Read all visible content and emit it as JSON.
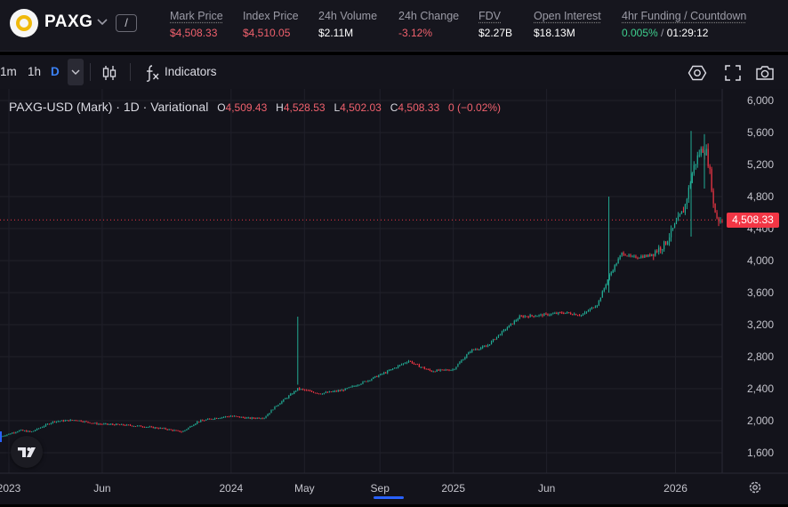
{
  "header": {
    "symbol": "PAXG",
    "shortcut_key": "/",
    "logo_icon": "paxg-gold-ring-icon",
    "stats": [
      {
        "id": "mark",
        "label": "Mark Price",
        "value": "$4,508.33",
        "value_color": "red"
      },
      {
        "id": "index",
        "label": "Index Price",
        "value": "$4,510.05",
        "value_color": "red"
      },
      {
        "id": "volume",
        "label": "24h Volume",
        "value": "$2.11M",
        "value_color": "white"
      },
      {
        "id": "change",
        "label": "24h Change",
        "value": "-3.12%",
        "value_color": "red"
      },
      {
        "id": "fdv",
        "label": "FDV",
        "value": "$2.27B",
        "value_color": "white"
      },
      {
        "id": "oi",
        "label": "Open Interest",
        "value": "$18.13M",
        "value_color": "white"
      }
    ],
    "funding": {
      "label": "4hr Funding / Countdown",
      "rate": "0.005%",
      "separator": "/",
      "countdown": "01:29:12"
    }
  },
  "toolbar": {
    "timeframes": [
      "1m",
      "1h",
      "D"
    ],
    "active_timeframe": "D",
    "indicators_label": "Indicators",
    "icons": [
      "chevron-down-icon",
      "candles-icon",
      "fx-icon",
      "settings-icon",
      "fullscreen-icon",
      "camera-icon"
    ]
  },
  "legend": {
    "title": "PAXG-USD (Mark) · 1D · Variational",
    "o_label": "O",
    "o": "4,509.43",
    "h_label": "H",
    "h": "4,528.53",
    "l_label": "L",
    "l": "4,502.03",
    "c_label": "C",
    "c": "4,508.33",
    "chg": "0 (−0.02%)"
  },
  "price_tag": "4,508.33",
  "colors": {
    "up": "#22ab94",
    "down": "#f23645",
    "accent": "#2962ff",
    "background": "#13131b"
  },
  "chart_data": {
    "type": "line",
    "title": "PAXG-USD (Mark) · 1D · Variational",
    "y_ticks": [
      6000,
      5600,
      5200,
      4800,
      4400,
      4000,
      3600,
      3200,
      2800,
      2400,
      2000,
      1600
    ],
    "y_tick_labels": [
      "6,000",
      "5,600",
      "5,200",
      "4,800",
      "4,400",
      "4,000",
      "3,600",
      "3,200",
      "2,800",
      "2,400",
      "2,000",
      "1,600"
    ],
    "x_labels": [
      {
        "t": 2023.0,
        "label": "2023"
      },
      {
        "t": 2023.42,
        "label": "Jun"
      },
      {
        "t": 2024.0,
        "label": "2024"
      },
      {
        "t": 2024.33,
        "label": "May"
      },
      {
        "t": 2024.67,
        "label": "Sep"
      },
      {
        "t": 2025.0,
        "label": "2025"
      },
      {
        "t": 2025.42,
        "label": "Jun"
      },
      {
        "t": 2026.0,
        "label": "2026"
      }
    ],
    "x_range": [
      2022.96,
      2026.21
    ],
    "ylim": [
      1450,
      6080
    ],
    "last_price": 4508.33,
    "series": [
      {
        "name": "PAXG-USD close (approx.)",
        "points": [
          [
            2022.96,
            1800
          ],
          [
            2023.05,
            1880
          ],
          [
            2023.1,
            1860
          ],
          [
            2023.2,
            1990
          ],
          [
            2023.3,
            2010
          ],
          [
            2023.4,
            1960
          ],
          [
            2023.5,
            1950
          ],
          [
            2023.6,
            1930
          ],
          [
            2023.7,
            1900
          ],
          [
            2023.78,
            1860
          ],
          [
            2023.85,
            1990
          ],
          [
            2023.92,
            2030
          ],
          [
            2024.0,
            2060
          ],
          [
            2024.08,
            2030
          ],
          [
            2024.15,
            2040
          ],
          [
            2024.2,
            2180
          ],
          [
            2024.27,
            2330
          ],
          [
            2024.3,
            2400
          ],
          [
            2024.4,
            2340
          ],
          [
            2024.5,
            2380
          ],
          [
            2024.55,
            2430
          ],
          [
            2024.62,
            2510
          ],
          [
            2024.7,
            2610
          ],
          [
            2024.8,
            2750
          ],
          [
            2024.83,
            2700
          ],
          [
            2024.9,
            2620
          ],
          [
            2025.0,
            2640
          ],
          [
            2025.08,
            2880
          ],
          [
            2025.15,
            2930
          ],
          [
            2025.2,
            3060
          ],
          [
            2025.3,
            3300
          ],
          [
            2025.4,
            3320
          ],
          [
            2025.5,
            3350
          ],
          [
            2025.58,
            3320
          ],
          [
            2025.65,
            3460
          ],
          [
            2025.7,
            3800
          ],
          [
            2025.76,
            4100
          ],
          [
            2025.8,
            4040
          ],
          [
            2025.88,
            4060
          ],
          [
            2025.95,
            4200
          ],
          [
            2026.0,
            4450
          ],
          [
            2026.04,
            4650
          ],
          [
            2026.06,
            4900
          ],
          [
            2026.08,
            5150
          ],
          [
            2026.1,
            5300
          ],
          [
            2026.12,
            5400
          ],
          [
            2026.14,
            5350
          ],
          [
            2026.16,
            5000
          ],
          [
            2026.17,
            4700
          ],
          [
            2026.19,
            4508
          ]
        ],
        "spikes": [
          [
            2024.3,
            2450,
            3300
          ],
          [
            2025.7,
            3600,
            4800
          ],
          [
            2026.07,
            4300,
            5620
          ],
          [
            2026.13,
            4900,
            5580
          ]
        ]
      }
    ]
  }
}
